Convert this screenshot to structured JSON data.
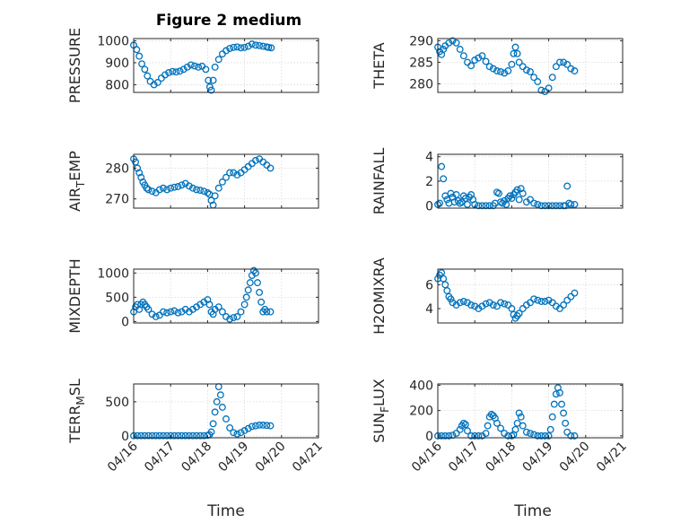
{
  "title": "Figure 2 medium",
  "xlabel": "Time",
  "x_tick_labels": [
    "04/16",
    "04/17",
    "04/18",
    "04/19",
    "04/20",
    "04/21"
  ],
  "marker_color": "#0072BD",
  "chart_data": [
    {
      "type": "scatter",
      "ylabel": "PRESSURE",
      "ylim": [
        765,
        1010
      ],
      "yticks": [
        800,
        900,
        1000
      ],
      "ytick_labels": [
        "800",
        "900",
        "1000"
      ],
      "grid": true,
      "series": [
        {
          "x": [
            0,
            0.08,
            0.15,
            0.22,
            0.3,
            0.37,
            0.45,
            0.55,
            0.65,
            0.75,
            0.85,
            0.95,
            1.05,
            1.15,
            1.25,
            1.35,
            1.45,
            1.55,
            1.65,
            1.75,
            1.85,
            1.95,
            2.02,
            2.06,
            2.1,
            2.15,
            2.2,
            2.3,
            2.4,
            2.5,
            2.6,
            2.7,
            2.8,
            2.9,
            3.0,
            3.1,
            3.2,
            3.3,
            3.4,
            3.5,
            3.6,
            3.65,
            3.72
          ],
          "y": [
            980,
            960,
            930,
            895,
            870,
            840,
            815,
            800,
            810,
            830,
            845,
            855,
            860,
            858,
            862,
            870,
            880,
            890,
            885,
            880,
            884,
            870,
            820,
            790,
            775,
            820,
            880,
            915,
            940,
            955,
            965,
            970,
            972,
            968,
            970,
            975,
            985,
            980,
            978,
            975,
            972,
            970,
            968
          ]
        }
      ]
    },
    {
      "type": "scatter",
      "ylabel": "THETA",
      "ylim": [
        278,
        290.5
      ],
      "yticks": [
        280,
        285,
        290
      ],
      "ytick_labels": [
        "280",
        "285",
        "290"
      ],
      "grid": true,
      "series": [
        {
          "x": [
            0,
            0.05,
            0.1,
            0.15,
            0.2,
            0.3,
            0.4,
            0.5,
            0.6,
            0.7,
            0.8,
            0.9,
            1.0,
            1.1,
            1.2,
            1.3,
            1.4,
            1.5,
            1.6,
            1.7,
            1.8,
            1.9,
            2.0,
            2.05,
            2.1,
            2.15,
            2.2,
            2.3,
            2.4,
            2.5,
            2.6,
            2.7,
            2.8,
            2.9,
            3.0,
            3.1,
            3.2,
            3.3,
            3.4,
            3.5,
            3.6,
            3.7
          ],
          "y": [
            288.5,
            287.5,
            286.8,
            288,
            288.8,
            289.5,
            290,
            289.5,
            288,
            286.5,
            285,
            284.2,
            285.5,
            286,
            286.5,
            285.2,
            284,
            283.5,
            283,
            282.8,
            282.5,
            283,
            284.5,
            287,
            288.5,
            287,
            285,
            284,
            283.2,
            282.8,
            281.5,
            280.5,
            278.5,
            278.2,
            279,
            281.5,
            284,
            285,
            285,
            284.5,
            283.5,
            283
          ]
        }
      ]
    },
    {
      "type": "scatter",
      "ylabel": "AIR_TEMP",
      "ylim": [
        267,
        284.5
      ],
      "yticks": [
        270,
        280
      ],
      "ytick_labels": [
        "270",
        "280"
      ],
      "grid": true,
      "series": [
        {
          "x": [
            0,
            0.05,
            0.1,
            0.15,
            0.2,
            0.25,
            0.3,
            0.35,
            0.4,
            0.5,
            0.6,
            0.7,
            0.8,
            0.9,
            1.0,
            1.1,
            1.2,
            1.3,
            1.4,
            1.5,
            1.6,
            1.7,
            1.8,
            1.9,
            2.0,
            2.05,
            2.1,
            2.15,
            2.2,
            2.3,
            2.4,
            2.5,
            2.6,
            2.7,
            2.8,
            2.9,
            3.0,
            3.1,
            3.2,
            3.3,
            3.4,
            3.5,
            3.6,
            3.7
          ],
          "y": [
            283,
            282,
            280,
            278.5,
            277,
            275.5,
            274.5,
            273.5,
            273,
            272.5,
            272,
            273,
            273.5,
            273,
            273.5,
            273.8,
            274,
            274.5,
            275,
            274.2,
            273.5,
            273,
            272.8,
            272.5,
            272,
            271.5,
            269.5,
            268,
            271,
            273.5,
            275.5,
            277,
            278.5,
            278.5,
            277.8,
            278.5,
            279.5,
            280.5,
            281.5,
            282.5,
            283,
            282,
            281,
            280
          ]
        }
      ]
    },
    {
      "type": "scatter",
      "ylabel": "RAINFALL",
      "ylim": [
        -0.2,
        4.2
      ],
      "yticks": [
        0,
        2,
        4
      ],
      "ytick_labels": [
        "0",
        "2",
        "4"
      ],
      "grid": true,
      "series": [
        {
          "x": [
            0,
            0.05,
            0.1,
            0.15,
            0.2,
            0.25,
            0.3,
            0.35,
            0.4,
            0.45,
            0.5,
            0.55,
            0.6,
            0.65,
            0.7,
            0.75,
            0.8,
            0.85,
            0.9,
            0.95,
            1.0,
            1.1,
            1.2,
            1.3,
            1.4,
            1.5,
            1.55,
            1.6,
            1.65,
            1.7,
            1.75,
            1.8,
            1.85,
            1.9,
            1.95,
            2.0,
            2.05,
            2.1,
            2.15,
            2.2,
            2.25,
            2.3,
            2.4,
            2.5,
            2.6,
            2.7,
            2.8,
            2.9,
            3.0,
            3.1,
            3.2,
            3.3,
            3.4,
            3.45,
            3.5,
            3.55,
            3.6,
            3.7
          ],
          "y": [
            0.1,
            0.2,
            3.2,
            2.2,
            0.8,
            0.5,
            0.2,
            1.0,
            0.7,
            0.3,
            0.9,
            0.4,
            0.2,
            0.3,
            0.8,
            0.6,
            0.1,
            0.7,
            0.9,
            0.5,
            0.1,
            0,
            0,
            0,
            0,
            0,
            0.2,
            1.1,
            1.0,
            0.3,
            0.2,
            0.4,
            0.1,
            0.6,
            0.8,
            0.6,
            0.9,
            1.1,
            1.3,
            0.5,
            1.4,
            1.0,
            0.3,
            0.5,
            0.2,
            0.1,
            0,
            0,
            0,
            0,
            0,
            0,
            0,
            0,
            1.6,
            0.2,
            0.1,
            0.1
          ]
        }
      ]
    },
    {
      "type": "scatter",
      "ylabel": "MIXDEPTH",
      "ylim": [
        -30,
        1080
      ],
      "yticks": [
        0,
        500,
        1000
      ],
      "ytick_labels": [
        "0",
        "500",
        "1000"
      ],
      "grid": true,
      "series": [
        {
          "x": [
            0,
            0.05,
            0.1,
            0.15,
            0.2,
            0.25,
            0.3,
            0.35,
            0.4,
            0.5,
            0.6,
            0.7,
            0.8,
            0.9,
            1.0,
            1.1,
            1.2,
            1.3,
            1.4,
            1.5,
            1.6,
            1.7,
            1.8,
            1.9,
            2.0,
            2.05,
            2.1,
            2.15,
            2.2,
            2.3,
            2.4,
            2.5,
            2.6,
            2.7,
            2.8,
            2.9,
            3.0,
            3.05,
            3.1,
            3.15,
            3.2,
            3.25,
            3.3,
            3.35,
            3.4,
            3.45,
            3.5,
            3.55,
            3.6,
            3.7
          ],
          "y": [
            200,
            300,
            350,
            250,
            350,
            400,
            350,
            300,
            250,
            150,
            100,
            130,
            200,
            180,
            200,
            220,
            180,
            200,
            250,
            200,
            250,
            300,
            350,
            400,
            450,
            350,
            200,
            150,
            250,
            300,
            200,
            100,
            50,
            80,
            100,
            200,
            350,
            500,
            650,
            800,
            950,
            1050,
            1000,
            800,
            600,
            400,
            200,
            250,
            200,
            200
          ]
        }
      ]
    },
    {
      "type": "scatter",
      "ylabel": "H2OMIXRA",
      "ylim": [
        2.8,
        7.3
      ],
      "yticks": [
        4,
        6
      ],
      "ytick_labels": [
        "4",
        "6"
      ],
      "grid": true,
      "series": [
        {
          "x": [
            0,
            0.05,
            0.1,
            0.15,
            0.2,
            0.25,
            0.3,
            0.35,
            0.4,
            0.5,
            0.6,
            0.7,
            0.8,
            0.9,
            1.0,
            1.1,
            1.2,
            1.3,
            1.4,
            1.5,
            1.6,
            1.7,
            1.8,
            1.9,
            2.0,
            2.05,
            2.1,
            2.15,
            2.2,
            2.3,
            2.4,
            2.5,
            2.6,
            2.7,
            2.8,
            2.9,
            3.0,
            3.1,
            3.2,
            3.3,
            3.4,
            3.5,
            3.6,
            3.7
          ],
          "y": [
            6.5,
            6.8,
            7.0,
            6.5,
            6.0,
            5.5,
            5.0,
            4.8,
            4.5,
            4.3,
            4.5,
            4.6,
            4.5,
            4.3,
            4.2,
            4.0,
            4.2,
            4.4,
            4.5,
            4.3,
            4.2,
            4.5,
            4.4,
            4.3,
            4.0,
            3.5,
            3.2,
            3.4,
            3.6,
            4.0,
            4.3,
            4.5,
            4.8,
            4.7,
            4.6,
            4.6,
            4.7,
            4.5,
            4.2,
            4.0,
            4.3,
            4.7,
            5.0,
            5.3
          ]
        }
      ]
    },
    {
      "type": "scatter",
      "ylabel": "TERR_MSL",
      "ylim": [
        -25,
        760
      ],
      "yticks": [
        0,
        500
      ],
      "ytick_labels": [
        "0",
        "500"
      ],
      "grid": true,
      "series": [
        {
          "x": [
            0,
            0.1,
            0.2,
            0.3,
            0.4,
            0.5,
            0.6,
            0.7,
            0.8,
            0.9,
            1.0,
            1.1,
            1.2,
            1.3,
            1.4,
            1.5,
            1.6,
            1.7,
            1.8,
            1.9,
            2.0,
            2.05,
            2.1,
            2.15,
            2.2,
            2.25,
            2.3,
            2.35,
            2.4,
            2.5,
            2.6,
            2.7,
            2.8,
            2.9,
            3.0,
            3.1,
            3.2,
            3.3,
            3.4,
            3.5,
            3.6,
            3.7
          ],
          "y": [
            5,
            5,
            5,
            5,
            5,
            5,
            5,
            5,
            5,
            5,
            5,
            5,
            5,
            5,
            5,
            5,
            5,
            5,
            5,
            5,
            10,
            20,
            60,
            180,
            350,
            500,
            720,
            600,
            420,
            250,
            120,
            50,
            30,
            50,
            80,
            110,
            140,
            150,
            160,
            160,
            155,
            150
          ]
        }
      ]
    },
    {
      "type": "scatter",
      "ylabel": "SUN_FLUX",
      "ylim": [
        -15,
        410
      ],
      "yticks": [
        0,
        200,
        400
      ],
      "ytick_labels": [
        "0",
        "200",
        "400"
      ],
      "grid": true,
      "series": [
        {
          "x": [
            0,
            0.1,
            0.2,
            0.3,
            0.4,
            0.5,
            0.6,
            0.65,
            0.7,
            0.75,
            0.8,
            0.9,
            1.0,
            1.1,
            1.2,
            1.3,
            1.35,
            1.4,
            1.45,
            1.5,
            1.55,
            1.6,
            1.7,
            1.8,
            1.9,
            2.0,
            2.05,
            2.1,
            2.15,
            2.2,
            2.25,
            2.3,
            2.4,
            2.5,
            2.6,
            2.7,
            2.8,
            2.9,
            3.0,
            3.05,
            3.1,
            3.15,
            3.2,
            3.25,
            3.3,
            3.35,
            3.4,
            3.45,
            3.5,
            3.6,
            3.7
          ],
          "y": [
            0,
            0,
            0,
            0,
            5,
            20,
            50,
            80,
            100,
            90,
            40,
            0,
            0,
            0,
            0,
            20,
            80,
            150,
            170,
            160,
            140,
            100,
            60,
            20,
            0,
            0,
            10,
            50,
            100,
            180,
            150,
            80,
            30,
            20,
            10,
            0,
            0,
            0,
            0,
            50,
            150,
            250,
            330,
            380,
            340,
            250,
            180,
            100,
            30,
            0,
            0
          ]
        }
      ]
    }
  ]
}
